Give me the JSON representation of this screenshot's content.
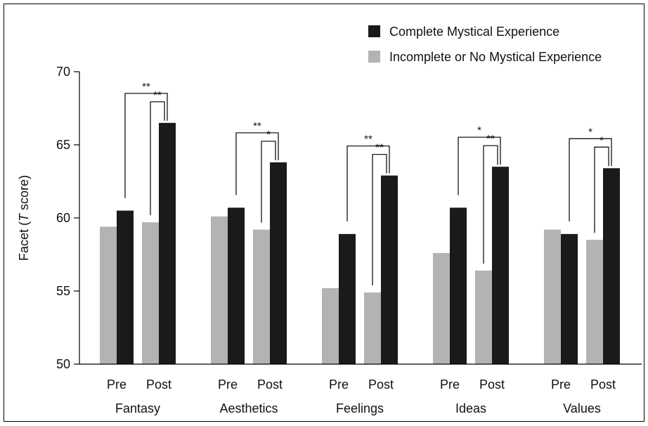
{
  "chart_data": {
    "type": "bar",
    "ylabel_parts": [
      "Facet (",
      "T",
      " score)"
    ],
    "ylim": [
      50,
      70
    ],
    "yticks": [
      "50",
      "55",
      "60",
      "65",
      "70"
    ],
    "groups": [
      "Fantasy",
      "Aesthetics",
      "Feelings",
      "Ideas",
      "Values"
    ],
    "subgroups": [
      "Pre",
      "Post"
    ],
    "series": [
      {
        "name": "Incomplete or No Mystical Experience",
        "color": "#b3b3b3",
        "values": {
          "Pre": [
            59.4,
            60.1,
            55.2,
            57.6,
            59.2
          ],
          "Post": [
            59.7,
            59.2,
            54.9,
            56.4,
            58.5
          ]
        }
      },
      {
        "name": "Complete Mystical Experience",
        "color": "#1a1a1a",
        "values": {
          "Pre": [
            60.5,
            60.7,
            58.9,
            60.7,
            58.9
          ],
          "Post": [
            66.5,
            63.8,
            62.9,
            63.5,
            63.4
          ]
        }
      }
    ],
    "significance": [
      {
        "group": "Fantasy",
        "outer": "**",
        "inner": "**"
      },
      {
        "group": "Aesthetics",
        "outer": "**",
        "inner": "*"
      },
      {
        "group": "Feelings",
        "outer": "**",
        "inner": "**"
      },
      {
        "group": "Ideas",
        "outer": "*",
        "inner": "**"
      },
      {
        "group": "Values",
        "outer": "*",
        "inner": "*"
      }
    ],
    "legend_position": "top-right",
    "grid": false
  }
}
